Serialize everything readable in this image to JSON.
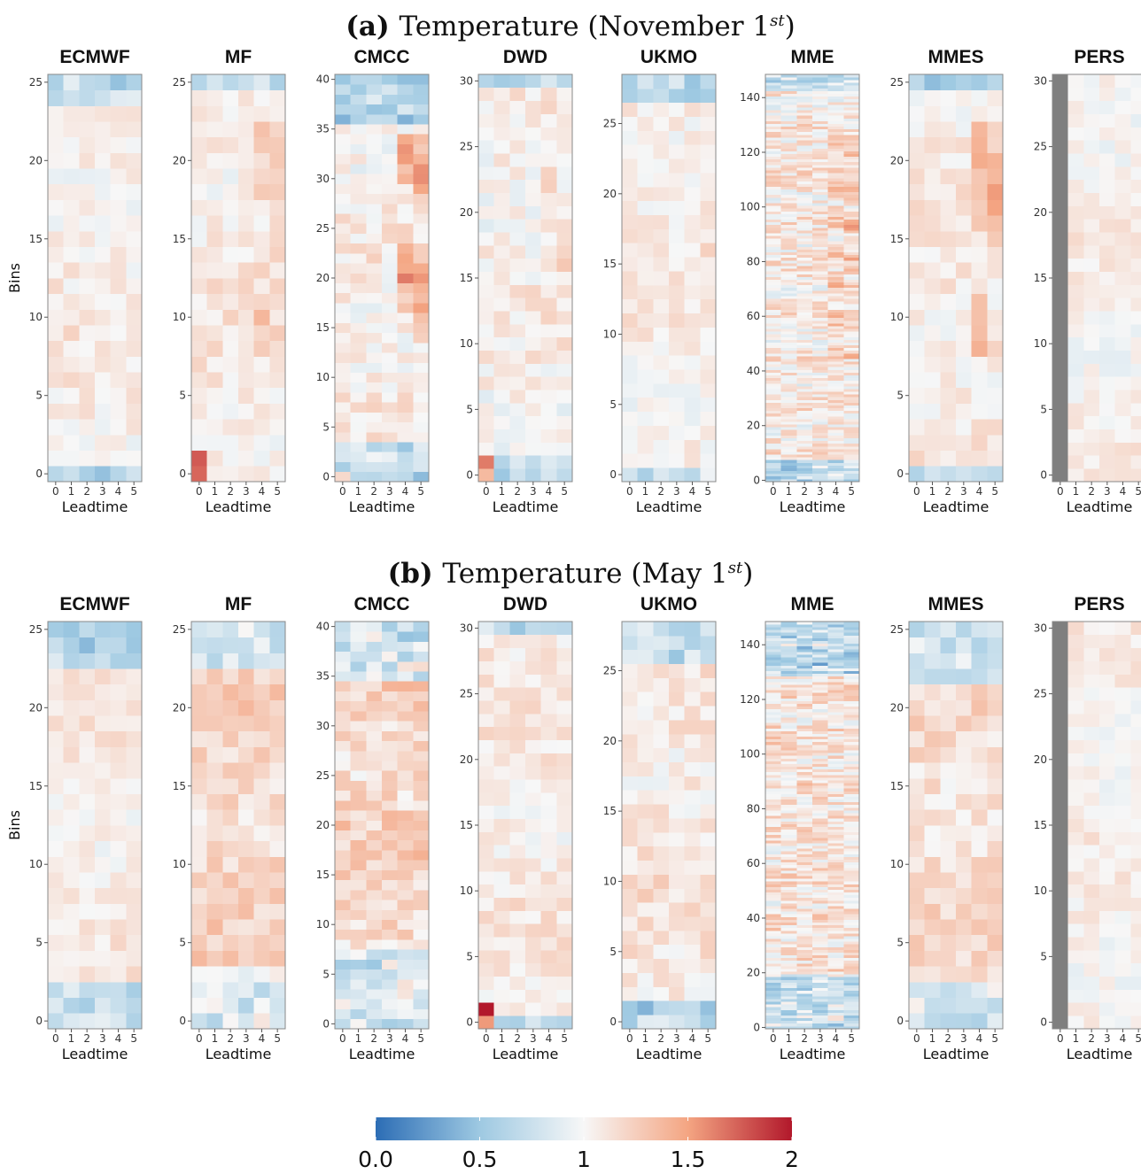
{
  "figure": {
    "colorbar": {
      "stops": [
        "#2c6db5",
        "#9ec9e2",
        "#f7f7f7",
        "#f4a582",
        "#b2182b"
      ],
      "tick_labels": [
        "0.0",
        "0.5",
        "1",
        "1.5",
        "2"
      ],
      "tick_values": [
        0,
        0.5,
        1,
        1.5,
        2
      ]
    },
    "missing_color": "#7f7f7f"
  },
  "chart_data": [
    {
      "type": "heatmap",
      "row_title": {
        "prefix": "(a)",
        "text": "Temperature (November 1",
        "superscript": "st",
        "suffix": ")"
      },
      "xlabel": "Leadtime",
      "ylabel": "Bins",
      "x_categories": [
        "0",
        "1",
        "2",
        "3",
        "4",
        "5"
      ],
      "color_range": [
        0,
        2
      ],
      "panels": [
        {
          "name": "ECMWF",
          "ymax": 25,
          "yticks": [
            0,
            5,
            10,
            15,
            20,
            25
          ],
          "seed": 11,
          "bias": 0.06,
          "amp": 0.12,
          "top_blue": 2,
          "bottom_blue": 1,
          "bottom_orange": 0,
          "right_warm": 0,
          "first_col_missing": false
        },
        {
          "name": "MF",
          "ymax": 25,
          "yticks": [
            0,
            5,
            10,
            15,
            20,
            25
          ],
          "seed": 23,
          "bias": 0.08,
          "amp": 0.12,
          "top_blue": 1,
          "bottom_blue": 0,
          "bottom_orange": 2,
          "right_warm": 0.2,
          "first_col_missing": false
        },
        {
          "name": "CMCC",
          "ymax": 40,
          "yticks": [
            0,
            5,
            10,
            15,
            20,
            25,
            30,
            35,
            40
          ],
          "seed": 37,
          "bias": 0.05,
          "amp": 0.15,
          "top_blue": 5,
          "bottom_blue": 4,
          "bottom_orange": 1,
          "right_warm": 0.45,
          "first_col_missing": false
        },
        {
          "name": "DWD",
          "ymax": 30,
          "yticks": [
            0,
            5,
            10,
            15,
            20,
            25,
            30
          ],
          "seed": 41,
          "bias": 0.04,
          "amp": 0.14,
          "top_blue": 1,
          "bottom_blue": 2,
          "bottom_orange": 2,
          "right_warm": 0.15,
          "first_col_missing": false
        },
        {
          "name": "UKMO",
          "ymax": 28,
          "yticks": [
            0,
            5,
            10,
            15,
            20,
            25
          ],
          "seed": 53,
          "bias": 0.06,
          "amp": 0.12,
          "top_blue": 2,
          "bottom_blue": 1,
          "bottom_orange": 0,
          "right_warm": 0.05,
          "first_col_missing": false
        },
        {
          "name": "MME",
          "ymax": 148,
          "yticks": [
            0,
            20,
            40,
            60,
            80,
            100,
            120,
            140
          ],
          "seed": 67,
          "bias": 0.08,
          "amp": 0.22,
          "top_blue": 6,
          "bottom_blue": 8,
          "bottom_orange": 0,
          "right_warm": 0.25,
          "first_col_missing": false
        },
        {
          "name": "MMES",
          "ymax": 25,
          "yticks": [
            0,
            5,
            10,
            15,
            20,
            25
          ],
          "seed": 71,
          "bias": 0.07,
          "amp": 0.12,
          "top_blue": 1,
          "bottom_blue": 1,
          "bottom_orange": 0,
          "right_warm": 0.35,
          "first_col_missing": false
        },
        {
          "name": "PERS",
          "ymax": 30,
          "yticks": [
            0,
            5,
            10,
            15,
            20,
            25,
            30
          ],
          "seed": 83,
          "bias": 0.04,
          "amp": 0.1,
          "top_blue": 0,
          "bottom_blue": 0,
          "bottom_orange": 0,
          "right_warm": 0,
          "first_col_missing": true
        }
      ]
    },
    {
      "type": "heatmap",
      "row_title": {
        "prefix": "(b)",
        "text": "Temperature (May 1",
        "superscript": "st",
        "suffix": ")"
      },
      "xlabel": "Leadtime",
      "ylabel": "Bins",
      "x_categories": [
        "0",
        "1",
        "2",
        "3",
        "4",
        "5"
      ],
      "color_range": [
        0,
        2
      ],
      "panels": [
        {
          "name": "ECMWF",
          "ymax": 25,
          "yticks": [
            0,
            5,
            10,
            15,
            20,
            25
          ],
          "seed": 101,
          "bias": 0.07,
          "amp": 0.1,
          "top_blue": 3,
          "bottom_blue": 3,
          "bottom_orange": 0,
          "right_warm": 0,
          "first_col_missing": false
        },
        {
          "name": "MF",
          "ymax": 25,
          "yticks": [
            0,
            5,
            10,
            15,
            20,
            25
          ],
          "seed": 113,
          "bias": 0.2,
          "amp": 0.14,
          "top_blue": 3,
          "bottom_blue": 4,
          "bottom_orange": 0,
          "right_warm": 0,
          "first_col_missing": false
        },
        {
          "name": "CMCC",
          "ymax": 40,
          "yticks": [
            0,
            5,
            10,
            15,
            20,
            25,
            30,
            35,
            40
          ],
          "seed": 127,
          "bias": 0.2,
          "amp": 0.18,
          "top_blue": 6,
          "bottom_blue": 8,
          "bottom_orange": 0,
          "right_warm": 0,
          "first_col_missing": false
        },
        {
          "name": "DWD",
          "ymax": 30,
          "yticks": [
            0,
            5,
            10,
            15,
            20,
            25,
            30
          ],
          "seed": 131,
          "bias": 0.08,
          "amp": 0.12,
          "top_blue": 1,
          "bottom_blue": 1,
          "bottom_orange": 2,
          "right_warm": 0,
          "first_col_missing": false
        },
        {
          "name": "UKMO",
          "ymax": 28,
          "yticks": [
            0,
            5,
            10,
            15,
            20,
            25
          ],
          "seed": 149,
          "bias": 0.1,
          "amp": 0.14,
          "top_blue": 3,
          "bottom_blue": 2,
          "bottom_orange": 0,
          "right_warm": 0,
          "first_col_missing": false
        },
        {
          "name": "MME",
          "ymax": 148,
          "yticks": [
            0,
            20,
            40,
            60,
            80,
            100,
            120,
            140
          ],
          "seed": 157,
          "bias": 0.12,
          "amp": 0.24,
          "top_blue": 20,
          "bottom_blue": 20,
          "bottom_orange": 0,
          "right_warm": 0,
          "first_col_missing": false
        },
        {
          "name": "MMES",
          "ymax": 25,
          "yticks": [
            0,
            5,
            10,
            15,
            20,
            25
          ],
          "seed": 163,
          "bias": 0.16,
          "amp": 0.14,
          "top_blue": 4,
          "bottom_blue": 3,
          "bottom_orange": 0,
          "right_warm": 0,
          "first_col_missing": false
        },
        {
          "name": "PERS",
          "ymax": 30,
          "yticks": [
            0,
            5,
            10,
            15,
            20,
            25,
            30
          ],
          "seed": 173,
          "bias": 0.04,
          "amp": 0.1,
          "top_blue": 0,
          "bottom_blue": 0,
          "bottom_orange": 0,
          "right_warm": 0,
          "first_col_missing": true
        }
      ]
    }
  ]
}
